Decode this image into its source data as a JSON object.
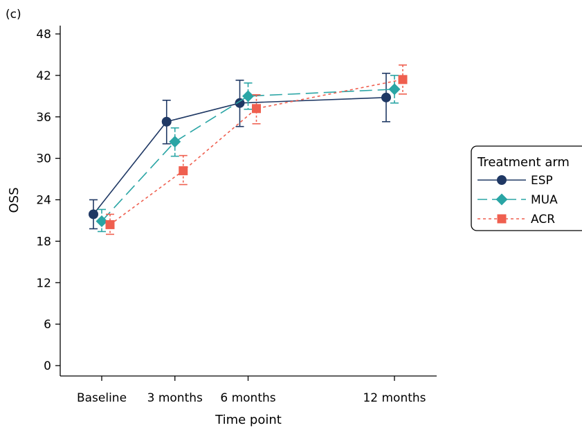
{
  "panel_label": "(c)",
  "chart_data": {
    "type": "line",
    "title": "",
    "xlabel": "Time point",
    "ylabel": "OSS",
    "x_positions_months": [
      0,
      3,
      6,
      12
    ],
    "categories": [
      "Baseline",
      "3 months",
      "6 months",
      "12 months"
    ],
    "ylim": [
      0,
      48
    ],
    "yticks": [
      0,
      6,
      12,
      18,
      24,
      30,
      36,
      42,
      48
    ],
    "grid": false,
    "legend": {
      "title": "Treatment arm",
      "placement": "right"
    },
    "series": [
      {
        "name": "ESP",
        "color": "#1f3864",
        "marker": "circle",
        "line": "solid",
        "values": [
          21.9,
          35.3,
          38.0,
          38.8
        ],
        "ci_low": [
          19.8,
          32.1,
          34.6,
          35.3
        ],
        "ci_high": [
          24.0,
          38.4,
          41.3,
          42.3
        ]
      },
      {
        "name": "MUA",
        "color": "#2aa5a5",
        "marker": "diamond",
        "line": "dashed",
        "values": [
          20.9,
          32.4,
          39.0,
          40.0
        ],
        "ci_low": [
          19.4,
          30.3,
          37.1,
          38.0
        ],
        "ci_high": [
          22.6,
          34.4,
          40.9,
          42.0
        ]
      },
      {
        "name": "ACR",
        "color": "#ef5f4f",
        "marker": "square",
        "line": "dotted",
        "values": [
          20.4,
          28.2,
          37.2,
          41.4
        ],
        "ci_low": [
          19.0,
          26.2,
          35.0,
          39.3
        ],
        "ci_high": [
          21.9,
          30.4,
          39.2,
          43.5
        ]
      }
    ]
  }
}
